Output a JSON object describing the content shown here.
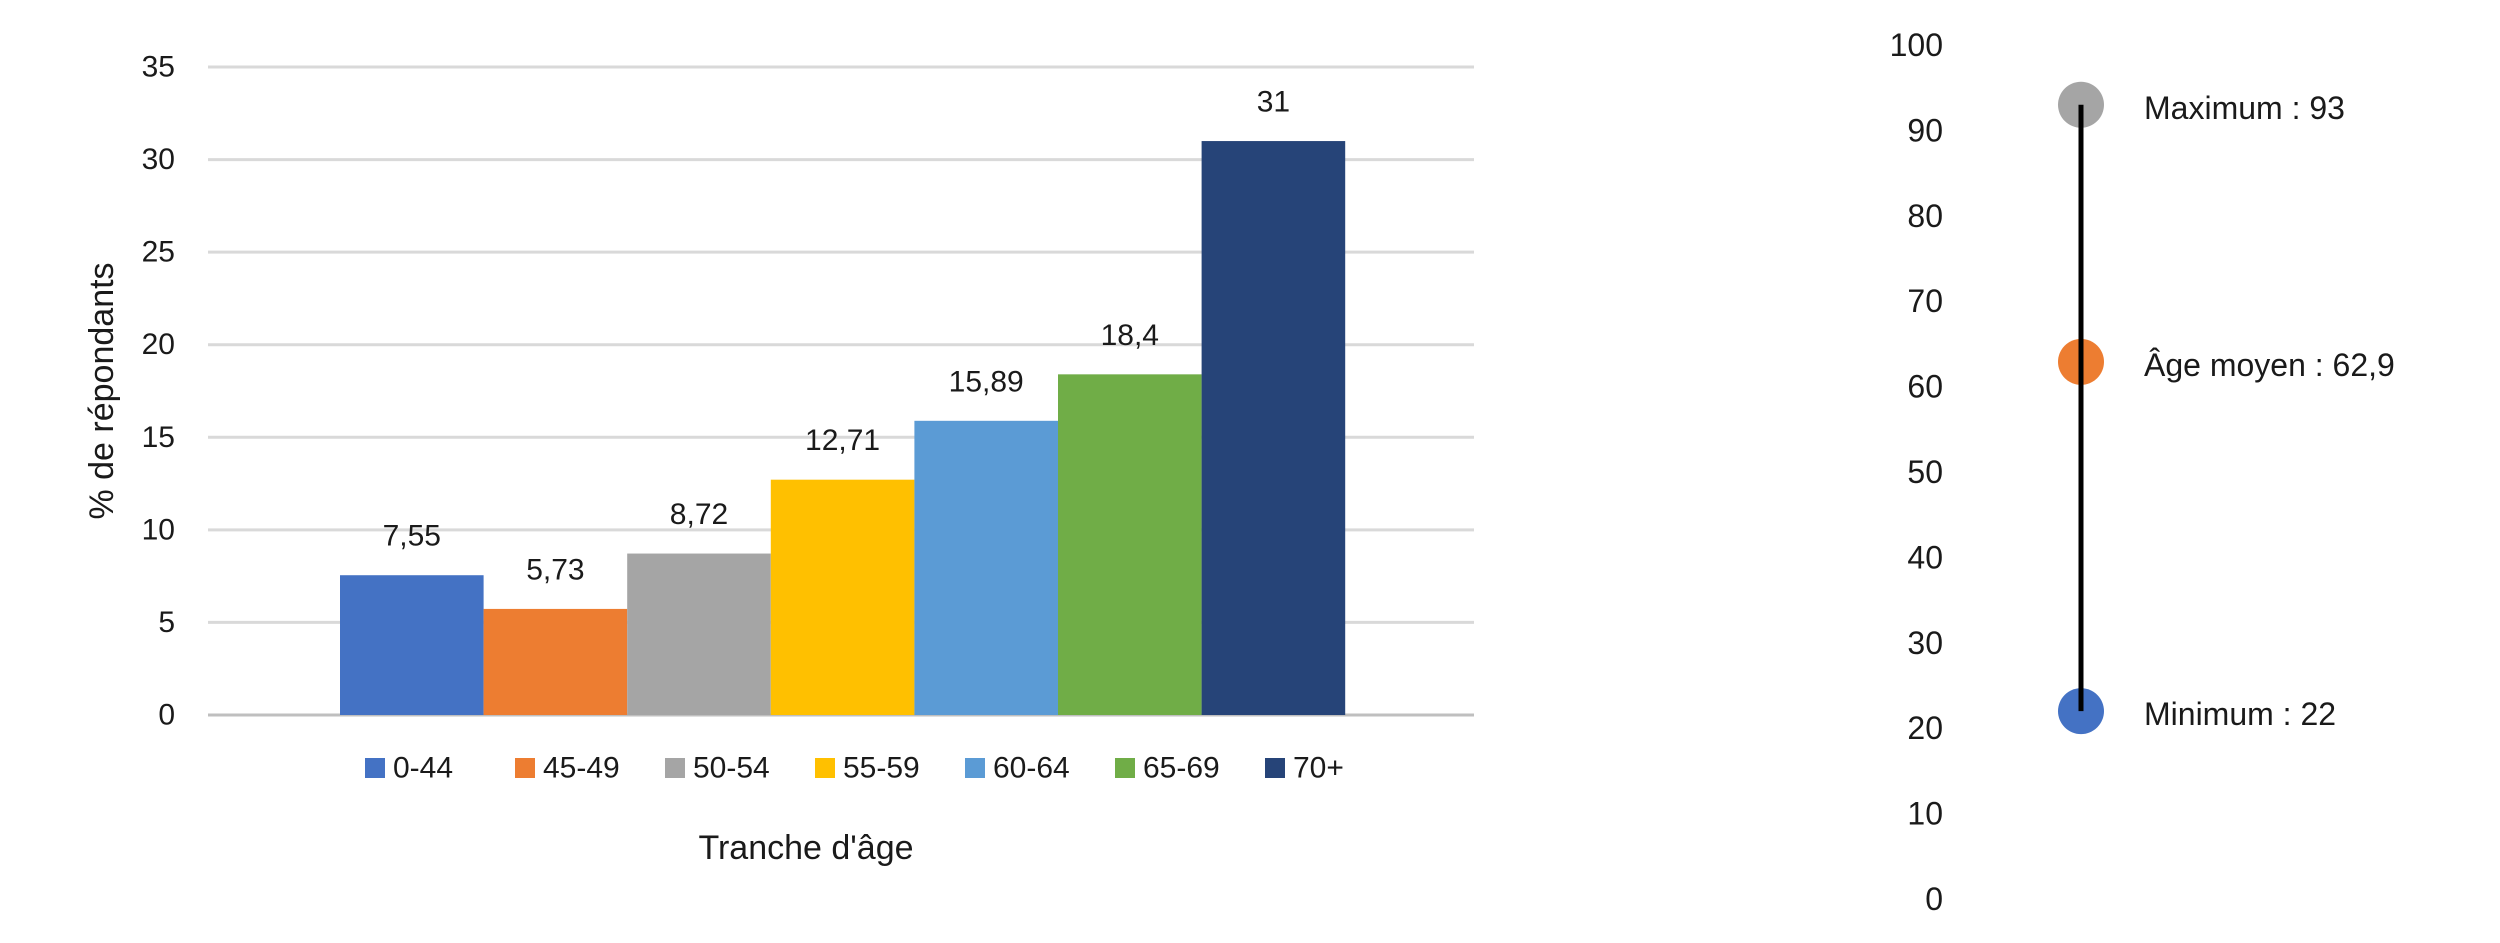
{
  "chart_data": [
    {
      "type": "bar",
      "xlabel": "Tranche d'âge",
      "ylabel": "% de répondants",
      "ylim": [
        0,
        35
      ],
      "yticks": [
        "0",
        "5",
        "10",
        "15",
        "20",
        "25",
        "30",
        "35"
      ],
      "grid": true,
      "legend_position": "bottom",
      "series": [
        {
          "name": "0-44",
          "value": 7.55,
          "label": "7,55",
          "color": "#4472C4"
        },
        {
          "name": "45-49",
          "value": 5.73,
          "label": "5,73",
          "color": "#ED7D31"
        },
        {
          "name": "50-54",
          "value": 8.72,
          "label": "8,72",
          "color": "#A5A5A5"
        },
        {
          "name": "55-59",
          "value": 12.71,
          "label": "12,71",
          "color": "#FFC000"
        },
        {
          "name": "60-64",
          "value": 15.89,
          "label": "15,89",
          "color": "#5B9BD5"
        },
        {
          "name": "65-69",
          "value": 18.4,
          "label": "18,4",
          "color": "#70AD47"
        },
        {
          "name": "70+",
          "value": 31,
          "label": "31",
          "color": "#264478"
        }
      ]
    },
    {
      "type": "scatter",
      "ylim": [
        0,
        100
      ],
      "yticks": [
        "0",
        "10",
        "20",
        "30",
        "40",
        "50",
        "60",
        "70",
        "80",
        "90",
        "100"
      ],
      "grid": false,
      "points": [
        {
          "key": "max",
          "value": 93,
          "label": "Maximum : 93",
          "color": "#A5A5A5"
        },
        {
          "key": "mean",
          "value": 62.9,
          "label": "Âge moyen : 62,9",
          "color": "#ED7D31"
        },
        {
          "key": "min",
          "value": 22,
          "label": "Minimum : 22",
          "color": "#4472C4"
        }
      ],
      "range_line": {
        "from": 22,
        "to": 93,
        "color": "#000000"
      }
    }
  ]
}
